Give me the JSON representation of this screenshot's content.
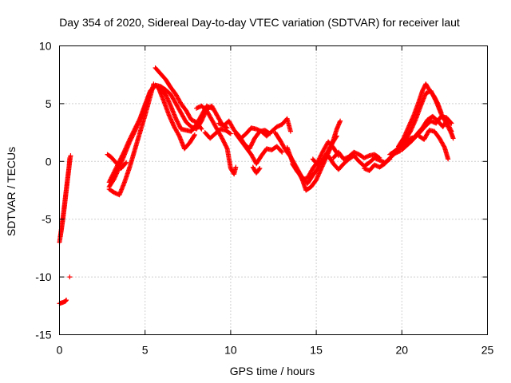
{
  "chart_data": {
    "type": "scatter",
    "title": "Day 354 of 2020, Sidereal Day-to-day VTEC variation (SDTVAR) for receiver laut",
    "xlabel": "GPS time / hours",
    "ylabel": "SDTVAR / TECUs",
    "xlim": [
      0,
      25
    ],
    "ylim": [
      -15,
      10
    ],
    "xticks": [
      0,
      5,
      10,
      15,
      20,
      25
    ],
    "yticks": [
      -15,
      -10,
      -5,
      0,
      5,
      10
    ],
    "xtick_labels": [
      "0",
      "5",
      "10",
      "15",
      "20",
      "25"
    ],
    "ytick_labels": [
      "-15",
      "-10",
      "-5",
      "0",
      "5",
      "10"
    ],
    "grid": true,
    "marker": "+",
    "marker_color": "#ff0000",
    "series": [
      {
        "name": "SDTVAR",
        "tracks": [
          [
            [
              0.0,
              -12.3
            ],
            [
              0.2,
              -12.2
            ],
            [
              0.35,
              -12.1
            ],
            [
              0.4,
              -12.0
            ]
          ],
          [
            [
              0.6,
              -10.0
            ]
          ],
          [
            [
              0.0,
              -7.0
            ],
            [
              0.1,
              -6.0
            ],
            [
              0.2,
              -5.0
            ],
            [
              0.3,
              -3.8
            ],
            [
              0.4,
              -2.5
            ],
            [
              0.5,
              -1.2
            ],
            [
              0.6,
              0.0
            ],
            [
              0.65,
              0.5
            ]
          ],
          [
            [
              0.05,
              -6.5
            ],
            [
              0.15,
              -5.5
            ],
            [
              0.25,
              -4.3
            ],
            [
              0.35,
              -3.0
            ],
            [
              0.45,
              -1.8
            ],
            [
              0.55,
              -0.6
            ],
            [
              0.6,
              0.3
            ]
          ],
          [
            [
              2.8,
              0.6
            ],
            [
              3.0,
              0.4
            ],
            [
              3.3,
              -0.1
            ],
            [
              3.6,
              -0.6
            ],
            [
              3.9,
              -0.1
            ]
          ],
          [
            [
              2.9,
              -2.4
            ],
            [
              3.2,
              -2.7
            ],
            [
              3.5,
              -2.9
            ],
            [
              3.8,
              -1.8
            ],
            [
              4.1,
              -0.5
            ],
            [
              4.4,
              1.0
            ],
            [
              4.7,
              2.5
            ],
            [
              5.0,
              4.0
            ],
            [
              5.3,
              5.6
            ],
            [
              5.5,
              6.7
            ]
          ],
          [
            [
              2.9,
              -2.2
            ],
            [
              3.2,
              -1.5
            ],
            [
              3.5,
              -0.5
            ],
            [
              3.8,
              0.6
            ],
            [
              4.1,
              1.7
            ],
            [
              4.4,
              2.6
            ],
            [
              4.7,
              3.6
            ],
            [
              5.0,
              4.8
            ],
            [
              5.3,
              6.0
            ],
            [
              5.6,
              6.6
            ],
            [
              5.9,
              6.2
            ],
            [
              6.2,
              5.8
            ],
            [
              6.5,
              4.8
            ],
            [
              6.8,
              3.7
            ],
            [
              7.1,
              2.8
            ],
            [
              7.4,
              2.7
            ],
            [
              7.7,
              2.6
            ],
            [
              8.0,
              3.2
            ],
            [
              8.3,
              4.0
            ],
            [
              8.6,
              4.8
            ],
            [
              8.9,
              4.6
            ]
          ],
          [
            [
              2.9,
              -1.8
            ],
            [
              3.2,
              -0.9
            ],
            [
              3.5,
              0.0
            ],
            [
              3.8,
              0.9
            ],
            [
              4.1,
              1.9
            ],
            [
              4.4,
              2.8
            ],
            [
              4.7,
              3.7
            ],
            [
              5.0,
              4.9
            ],
            [
              5.3,
              6.1
            ],
            [
              5.6,
              6.6
            ],
            [
              5.9,
              6.5
            ],
            [
              6.2,
              6.2
            ],
            [
              6.5,
              5.8
            ],
            [
              6.8,
              5.0
            ],
            [
              7.1,
              4.2
            ],
            [
              7.4,
              3.4
            ],
            [
              7.7,
              3.0
            ],
            [
              8.0,
              2.8
            ],
            [
              8.3,
              3.5
            ],
            [
              8.6,
              4.5
            ],
            [
              8.9,
              4.8
            ],
            [
              9.2,
              4.0
            ],
            [
              9.5,
              3.2
            ],
            [
              9.8,
              2.9
            ]
          ],
          [
            [
              5.6,
              8.1
            ],
            [
              5.9,
              7.6
            ],
            [
              6.2,
              7.1
            ],
            [
              6.5,
              6.4
            ],
            [
              6.8,
              5.8
            ],
            [
              7.1,
              5.0
            ],
            [
              7.4,
              4.4
            ],
            [
              7.7,
              3.6
            ],
            [
              8.0,
              3.4
            ],
            [
              8.3,
              2.8
            ]
          ],
          [
            [
              5.8,
              6.3
            ],
            [
              6.1,
              5.2
            ],
            [
              6.4,
              4.0
            ],
            [
              6.7,
              3.0
            ],
            [
              7.0,
              2.2
            ],
            [
              7.3,
              1.1
            ],
            [
              7.6,
              1.6
            ],
            [
              7.9,
              2.3
            ]
          ],
          [
            [
              8.0,
              4.6
            ],
            [
              8.3,
              4.8
            ],
            [
              8.6,
              4.4
            ],
            [
              8.9,
              3.6
            ],
            [
              9.2,
              2.8
            ],
            [
              9.5,
              2.0
            ],
            [
              9.8,
              1.1
            ],
            [
              10.0,
              -0.6
            ],
            [
              10.2,
              -1.1
            ],
            [
              10.3,
              -0.5
            ]
          ],
          [
            [
              8.5,
              2.5
            ],
            [
              8.8,
              2.0
            ],
            [
              9.1,
              2.4
            ],
            [
              9.4,
              2.8
            ],
            [
              9.7,
              2.7
            ],
            [
              10.0,
              2.4
            ]
          ],
          [
            [
              9.3,
              3.3
            ],
            [
              9.6,
              3.1
            ],
            [
              9.9,
              3.5
            ],
            [
              10.2,
              2.7
            ],
            [
              10.5,
              2.2
            ],
            [
              10.8,
              1.5
            ],
            [
              11.1,
              1.1
            ],
            [
              11.4,
              2.0
            ],
            [
              11.7,
              2.6
            ],
            [
              12.0,
              2.7
            ],
            [
              12.3,
              2.4
            ]
          ],
          [
            [
              10.3,
              2.4
            ],
            [
              10.6,
              1.8
            ],
            [
              10.9,
              1.2
            ],
            [
              11.2,
              0.6
            ],
            [
              11.5,
              -0.2
            ],
            [
              11.8,
              0.5
            ],
            [
              12.1,
              1.1
            ],
            [
              12.4,
              1.0
            ],
            [
              12.7,
              1.3
            ],
            [
              13.0,
              0.8
            ]
          ],
          [
            [
              10.6,
              2.0
            ],
            [
              10.9,
              2.4
            ],
            [
              11.2,
              2.9
            ],
            [
              11.5,
              2.8
            ],
            [
              11.8,
              2.6
            ],
            [
              12.1,
              2.2
            ],
            [
              12.4,
              2.6
            ],
            [
              12.7,
              3.0
            ],
            [
              13.0,
              3.2
            ],
            [
              13.3,
              3.7
            ],
            [
              13.5,
              2.6
            ]
          ],
          [
            [
              11.3,
              -0.5
            ],
            [
              11.5,
              -1.0
            ],
            [
              11.7,
              -0.6
            ]
          ],
          [
            [
              12.6,
              2.5
            ],
            [
              12.9,
              1.8
            ],
            [
              13.2,
              1.0
            ],
            [
              13.5,
              0.4
            ],
            [
              13.8,
              -0.4
            ],
            [
              14.1,
              -1.2
            ],
            [
              14.4,
              -2.5
            ],
            [
              14.7,
              -2.2
            ],
            [
              15.0,
              -1.6
            ],
            [
              15.3,
              -0.6
            ],
            [
              15.6,
              0.4
            ],
            [
              15.9,
              1.4
            ],
            [
              16.2,
              2.8
            ],
            [
              16.4,
              3.5
            ]
          ],
          [
            [
              13.3,
              1.2
            ],
            [
              13.6,
              0.0
            ],
            [
              13.9,
              -0.8
            ],
            [
              14.2,
              -1.6
            ],
            [
              14.5,
              -1.4
            ],
            [
              14.8,
              -0.6
            ],
            [
              15.1,
              0.0
            ],
            [
              15.4,
              0.9
            ],
            [
              15.7,
              1.7
            ],
            [
              16.0,
              1.2
            ],
            [
              16.3,
              0.5
            ]
          ],
          [
            [
              13.6,
              -0.2
            ],
            [
              13.9,
              -0.9
            ],
            [
              14.2,
              -1.4
            ],
            [
              14.5,
              -1.9
            ],
            [
              14.8,
              -1.2
            ],
            [
              15.1,
              -0.6
            ],
            [
              15.4,
              0.2
            ],
            [
              15.7,
              0.9
            ],
            [
              15.9,
              1.5
            ],
            [
              16.2,
              2.2
            ]
          ],
          [
            [
              14.8,
              0.2
            ],
            [
              15.1,
              -0.3
            ],
            [
              15.4,
              0.1
            ],
            [
              15.7,
              0.5
            ],
            [
              16.0,
              -0.2
            ],
            [
              16.3,
              -0.7
            ],
            [
              16.6,
              -0.2
            ],
            [
              16.9,
              0.2
            ],
            [
              17.2,
              0.5
            ],
            [
              17.5,
              0.0
            ],
            [
              17.8,
              -0.4
            ],
            [
              18.1,
              -0.1
            ],
            [
              18.4,
              0.3
            ],
            [
              18.7,
              0.1
            ],
            [
              19.0,
              -0.1
            ],
            [
              19.3,
              0.2
            ]
          ],
          [
            [
              16.0,
              0.3
            ],
            [
              16.3,
              0.8
            ],
            [
              16.6,
              0.2
            ],
            [
              16.9,
              0.4
            ],
            [
              17.2,
              0.8
            ],
            [
              17.5,
              0.6
            ],
            [
              17.8,
              0.3
            ],
            [
              18.1,
              0.5
            ],
            [
              18.4,
              0.6
            ],
            [
              18.7,
              0.3
            ]
          ],
          [
            [
              17.8,
              -0.6
            ],
            [
              18.1,
              -0.8
            ],
            [
              18.4,
              -0.3
            ],
            [
              18.7,
              -0.5
            ],
            [
              19.0,
              -0.2
            ],
            [
              19.3,
              0.3
            ],
            [
              19.6,
              0.7
            ],
            [
              19.9,
              0.9
            ]
          ],
          [
            [
              19.3,
              0.6
            ],
            [
              19.6,
              0.9
            ],
            [
              19.9,
              1.3
            ],
            [
              20.2,
              1.9
            ],
            [
              20.5,
              2.6
            ],
            [
              20.8,
              3.6
            ],
            [
              21.1,
              4.8
            ],
            [
              21.4,
              5.9
            ],
            [
              21.7,
              6.1
            ],
            [
              22.0,
              5.2
            ],
            [
              22.3,
              4.1
            ],
            [
              22.6,
              3.3
            ],
            [
              22.9,
              2.4
            ],
            [
              23.0,
              2.0
            ]
          ],
          [
            [
              19.6,
              0.9
            ],
            [
              19.9,
              1.2
            ],
            [
              20.2,
              1.5
            ],
            [
              20.5,
              2.0
            ],
            [
              20.8,
              2.1
            ],
            [
              21.1,
              2.6
            ],
            [
              21.4,
              3.1
            ],
            [
              21.7,
              3.5
            ],
            [
              22.0,
              3.3
            ],
            [
              22.3,
              3.9
            ],
            [
              22.6,
              3.8
            ],
            [
              22.9,
              3.3
            ]
          ],
          [
            [
              20.0,
              1.0
            ],
            [
              20.3,
              1.4
            ],
            [
              20.6,
              1.8
            ],
            [
              20.9,
              2.4
            ],
            [
              21.2,
              2.9
            ],
            [
              21.5,
              3.6
            ],
            [
              21.8,
              3.9
            ],
            [
              22.1,
              3.5
            ],
            [
              22.4,
              3.0
            ],
            [
              22.6,
              3.5
            ],
            [
              22.9,
              2.6
            ]
          ],
          [
            [
              19.8,
              1.3
            ],
            [
              20.1,
              2.0
            ],
            [
              20.4,
              3.0
            ],
            [
              20.7,
              4.0
            ],
            [
              21.0,
              5.2
            ],
            [
              21.2,
              6.1
            ],
            [
              21.4,
              6.7
            ],
            [
              21.6,
              6.2
            ],
            [
              21.9,
              5.6
            ],
            [
              22.1,
              5.0
            ],
            [
              22.3,
              4.2
            ]
          ],
          [
            [
              21.0,
              2.2
            ],
            [
              21.3,
              1.9
            ],
            [
              21.6,
              2.7
            ],
            [
              21.9,
              2.6
            ],
            [
              22.2,
              2.0
            ],
            [
              22.5,
              1.2
            ],
            [
              22.7,
              0.2
            ]
          ]
        ]
      }
    ]
  }
}
